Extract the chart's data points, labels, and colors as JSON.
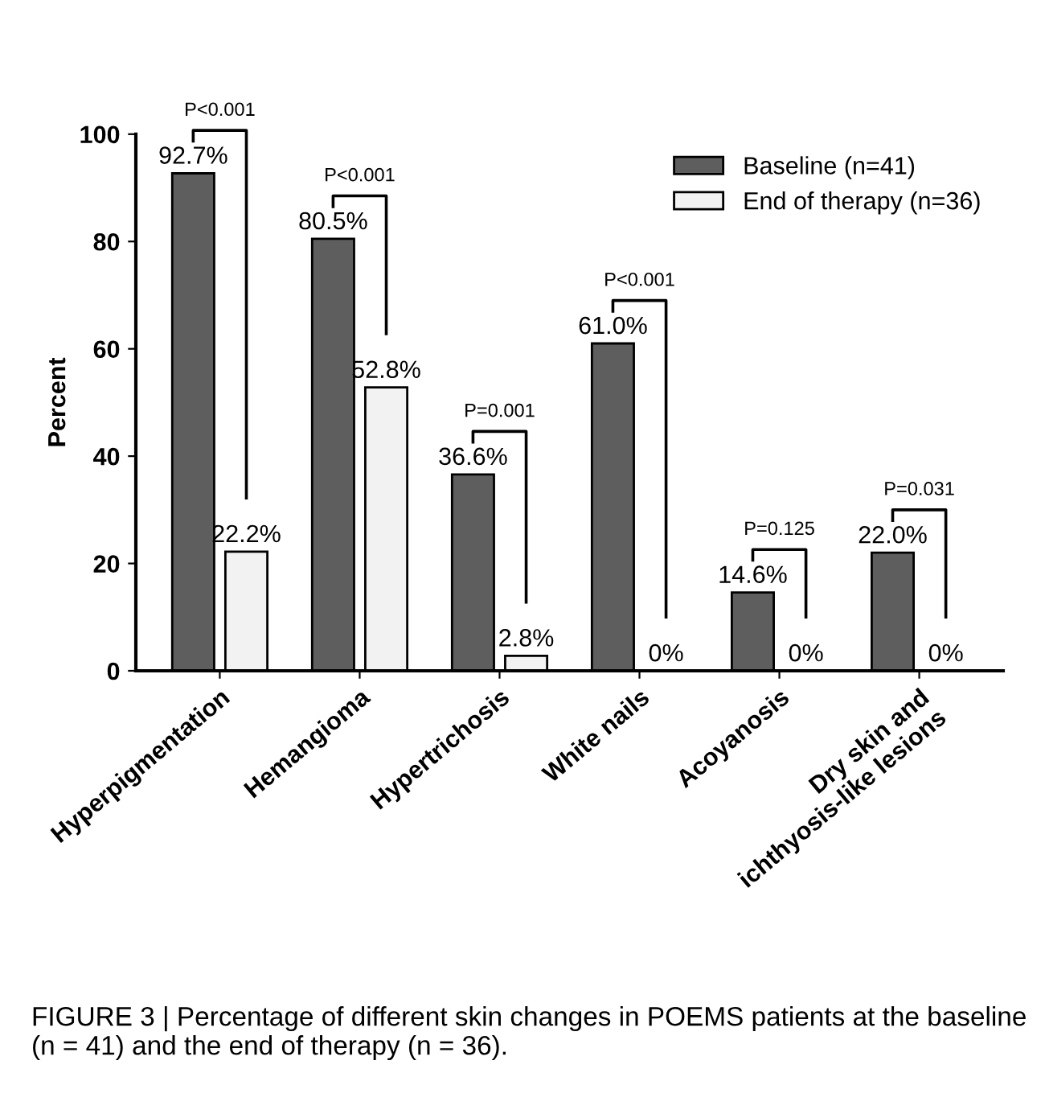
{
  "chart_data": {
    "type": "bar",
    "ylabel": "Percent",
    "categories": [
      "Hyperpigmentation",
      "Hemangioma",
      "Hypertrichosis",
      "White nails",
      "Acoyanosis",
      "Dry skin and\nichthyosis-like lesions"
    ],
    "series": [
      {
        "name": "Baseline (n=41)",
        "color": "#5e5e5e",
        "values": [
          92.7,
          80.5,
          36.6,
          61.0,
          14.6,
          22.0
        ],
        "value_labels": [
          "92.7%",
          "80.5%",
          "36.6%",
          "61.0%",
          "14.6%",
          "22.0%"
        ]
      },
      {
        "name": "End of therapy (n=36)",
        "color": "#f2f2f2",
        "values": [
          22.2,
          52.8,
          2.8,
          0,
          0,
          0
        ],
        "value_labels": [
          "22.2%",
          "52.8%",
          "2.8%",
          "0%",
          "0%",
          "0%"
        ]
      }
    ],
    "ylim": [
      0,
      100
    ],
    "yticks": [
      0,
      20,
      40,
      60,
      80,
      100
    ],
    "grid": false,
    "legend": "top right",
    "annotations": [
      "P<0.001",
      "P<0.001",
      "P=0.001",
      "P<0.001",
      "P=0.125",
      "P=0.031",
      "FIGURE 3 | Percentage of different skin changes in POEMS patients at the baseline (n = 41) and the end of therapy (n = 36)."
    ]
  }
}
